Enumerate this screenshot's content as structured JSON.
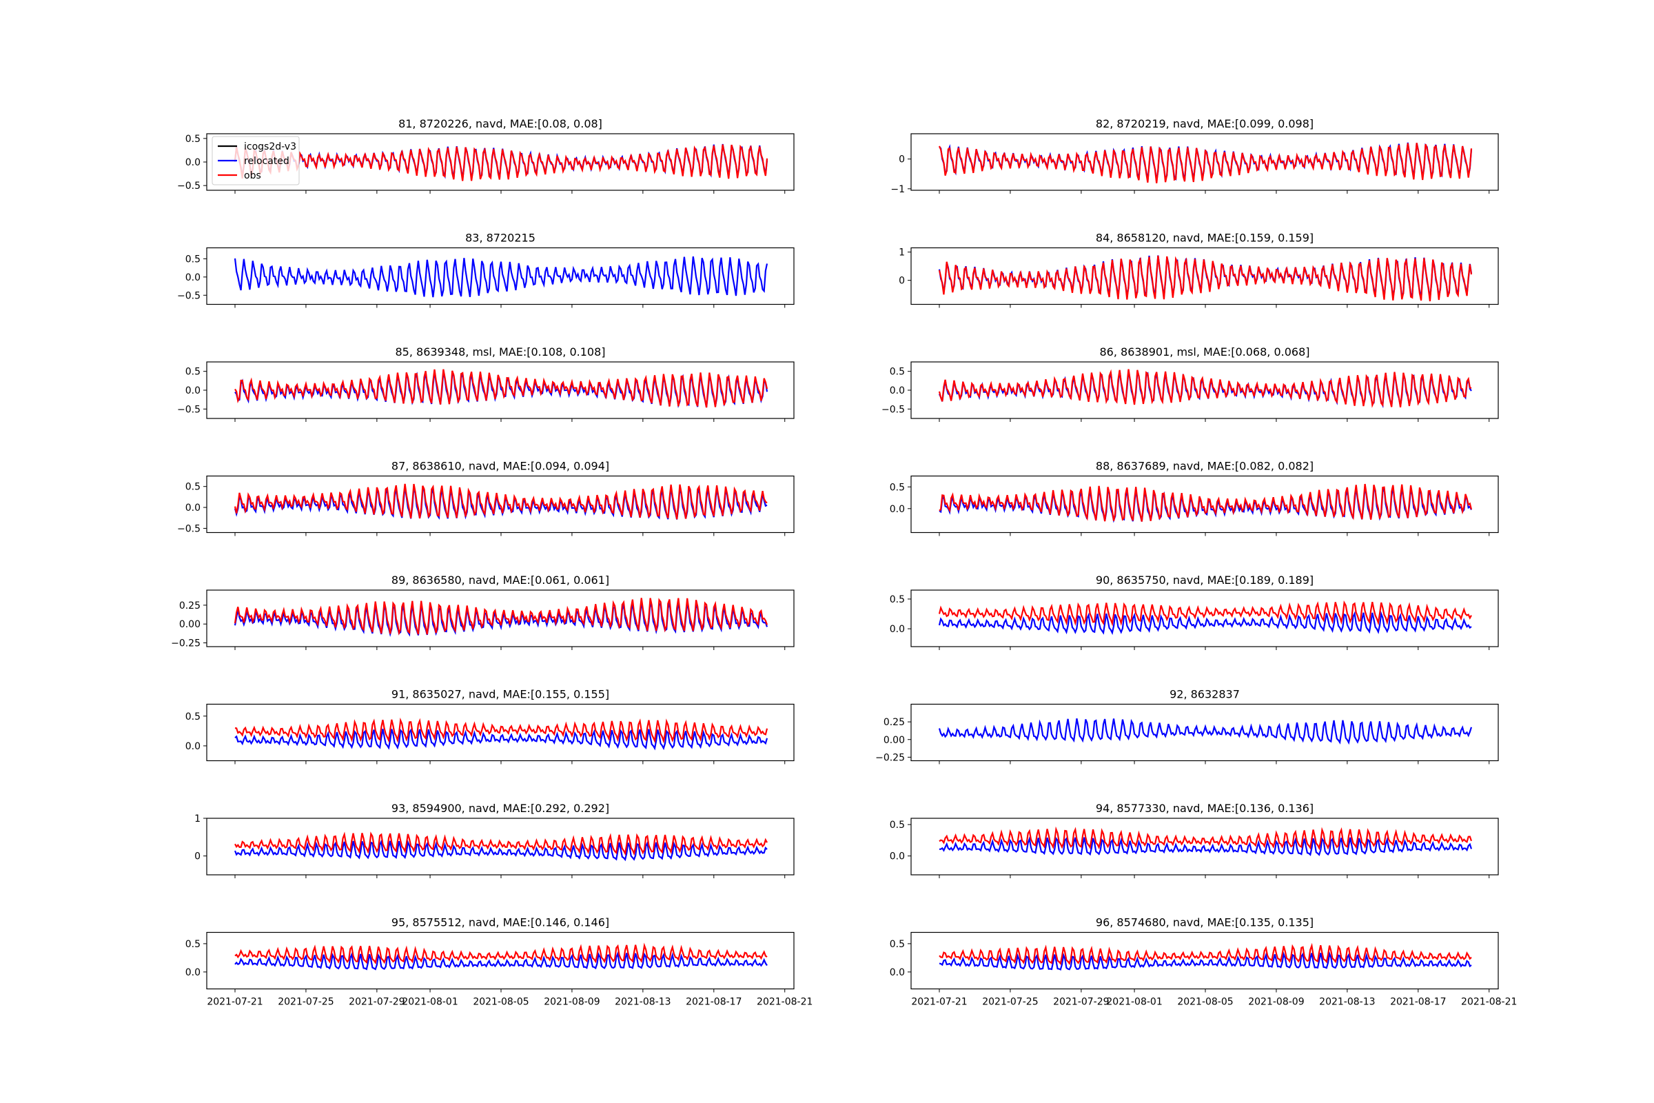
{
  "x_tick_labels": [
    "2021-07-21",
    "2021-07-25",
    "2021-07-29",
    "2021-08-01",
    "2021-08-05",
    "2021-08-09",
    "2021-08-13",
    "2021-08-17",
    "2021-08-21"
  ],
  "legend": [
    {
      "label": "icogs2d-v3",
      "color": "#000000"
    },
    {
      "label": "relocated",
      "color": "#0000ff"
    },
    {
      "label": "obs",
      "color": "#ff0000"
    }
  ],
  "chart_data": [
    {
      "type": "line",
      "title": "81, 8720226, navd, MAE:[0.08, 0.08]",
      "yticks": [
        "0.5",
        "0.0",
        "−0.5"
      ],
      "ylim": [
        -0.6,
        0.6
      ],
      "mean": 0.0,
      "amp": 0.35,
      "obs_offset": 0.0,
      "has_obs": true
    },
    {
      "type": "line",
      "title": "82, 8720219, navd, MAE:[0.099, 0.098]",
      "yticks": [
        "0",
        "−1"
      ],
      "ylim": [
        -1.05,
        0.85
      ],
      "mean": -0.1,
      "amp": 0.6,
      "obs_offset": 0.0,
      "has_obs": true
    },
    {
      "type": "line",
      "title": "83, 8720215",
      "yticks": [
        "0.5",
        "0.0",
        "−0.5"
      ],
      "ylim": [
        -0.75,
        0.8
      ],
      "mean": 0.0,
      "amp": 0.55,
      "obs_offset": 0.0,
      "has_obs": false
    },
    {
      "type": "line",
      "title": "84, 8658120, navd, MAE:[0.159, 0.159]",
      "yticks": [
        "1",
        "0"
      ],
      "ylim": [
        -0.85,
        1.15
      ],
      "mean": 0.1,
      "amp": 0.75,
      "obs_offset": 0.0,
      "has_obs": true
    },
    {
      "type": "line",
      "title": "85, 8639348, msl, MAE:[0.108, 0.108]",
      "yticks": [
        "0.5",
        "0.0",
        "−0.5"
      ],
      "ylim": [
        -0.75,
        0.75
      ],
      "mean": 0.0,
      "amp": 0.45,
      "obs_offset": 0.05,
      "has_obs": true
    },
    {
      "type": "line",
      "title": "86, 8638901, msl, MAE:[0.068, 0.068]",
      "yticks": [
        "0.5",
        "0.0",
        "−0.5"
      ],
      "ylim": [
        -0.75,
        0.75
      ],
      "mean": 0.0,
      "amp": 0.45,
      "obs_offset": 0.03,
      "has_obs": true
    },
    {
      "type": "line",
      "title": "87, 8638610, navd, MAE:[0.094, 0.094]",
      "yticks": [
        "0.5",
        "0.0",
        "−0.5"
      ],
      "ylim": [
        -0.6,
        0.75
      ],
      "mean": 0.05,
      "amp": 0.4,
      "obs_offset": 0.06,
      "has_obs": true
    },
    {
      "type": "line",
      "title": "88, 8637689, navd, MAE:[0.082, 0.082]",
      "yticks": [
        "0.5",
        "0.0"
      ],
      "ylim": [
        -0.55,
        0.75
      ],
      "mean": 0.05,
      "amp": 0.4,
      "obs_offset": 0.05,
      "has_obs": true
    },
    {
      "type": "line",
      "title": "89, 8636580, navd, MAE:[0.061, 0.061]",
      "yticks": [
        "0.25",
        "0.00",
        "−0.25"
      ],
      "ylim": [
        -0.3,
        0.45
      ],
      "mean": 0.05,
      "amp": 0.22,
      "obs_offset": 0.04,
      "has_obs": true
    },
    {
      "type": "line",
      "title": "90, 8635750, navd, MAE:[0.189, 0.189]",
      "yticks": [
        "0.5",
        "0.0"
      ],
      "ylim": [
        -0.3,
        0.65
      ],
      "mean": 0.08,
      "amp": 0.17,
      "obs_offset": 0.18,
      "has_obs": true
    },
    {
      "type": "line",
      "title": "91, 8635027, navd, MAE:[0.155, 0.155]",
      "yticks": [
        "0.5",
        "0.0"
      ],
      "ylim": [
        -0.25,
        0.7
      ],
      "mean": 0.1,
      "amp": 0.17,
      "obs_offset": 0.15,
      "has_obs": true
    },
    {
      "type": "line",
      "title": "92, 8632837",
      "yticks": [
        "0.25",
        "0.00",
        "−0.25"
      ],
      "ylim": [
        -0.3,
        0.5
      ],
      "mean": 0.1,
      "amp": 0.17,
      "obs_offset": 0.0,
      "has_obs": false
    },
    {
      "type": "line",
      "title": "93, 8594900, navd, MAE:[0.292, 0.292]",
      "yticks": [
        "1",
        "0"
      ],
      "ylim": [
        -0.5,
        1.0
      ],
      "mean": 0.1,
      "amp": 0.25,
      "obs_offset": 0.2,
      "has_obs": true
    },
    {
      "type": "line",
      "title": "94, 8577330, navd, MAE:[0.136, 0.136]",
      "yticks": [
        "0.5",
        "0.0"
      ],
      "ylim": [
        -0.3,
        0.6
      ],
      "mean": 0.12,
      "amp": 0.15,
      "obs_offset": 0.13,
      "has_obs": true
    },
    {
      "type": "line",
      "title": "95, 8575512, navd, MAE:[0.146, 0.146]",
      "yticks": [
        "0.5",
        "0.0"
      ],
      "ylim": [
        -0.3,
        0.7
      ],
      "mean": 0.15,
      "amp": 0.15,
      "obs_offset": 0.14,
      "has_obs": true
    },
    {
      "type": "line",
      "title": "96, 8574680, navd, MAE:[0.135, 0.135]",
      "yticks": [
        "0.5",
        "0.0"
      ],
      "ylim": [
        -0.3,
        0.7
      ],
      "mean": 0.15,
      "amp": 0.15,
      "obs_offset": 0.13,
      "has_obs": true
    }
  ]
}
